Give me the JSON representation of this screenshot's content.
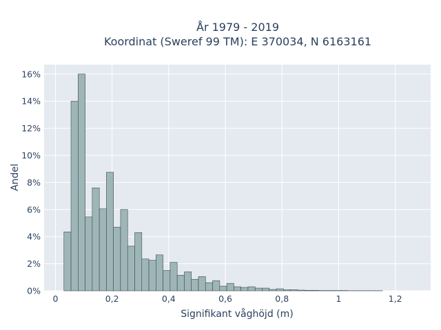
{
  "chart_data": {
    "type": "bar",
    "subtype": "histogram",
    "title_lines": [
      "År 1979 - 2019",
      "Koordinat (Sweref 99 TM): E 370034, N 6163161"
    ],
    "xlabel": "Signifikant våghöjd (m)",
    "ylabel": "Andel",
    "xlim": [
      -0.04,
      1.325
    ],
    "ylim": [
      0,
      0.167
    ],
    "x_ticks": [
      0,
      0.2,
      0.4,
      0.6,
      0.8,
      1,
      1.2
    ],
    "x_tick_labels": [
      "0",
      "0,2",
      "0,4",
      "0,6",
      "0,8",
      "1",
      "1,2"
    ],
    "y_ticks": [
      0,
      0.02,
      0.04,
      0.06,
      0.08,
      0.1,
      0.12,
      0.14,
      0.16
    ],
    "y_tick_labels": [
      "0%",
      "2%",
      "4%",
      "6%",
      "8%",
      "10%",
      "12%",
      "14%",
      "16%"
    ],
    "grid": true,
    "bin_width": 0.025,
    "bin_start": 0.03,
    "values": [
      0.0435,
      0.14,
      0.16,
      0.0545,
      0.076,
      0.0605,
      0.0875,
      0.047,
      0.06,
      0.033,
      0.043,
      0.0235,
      0.0225,
      0.0265,
      0.015,
      0.021,
      0.0115,
      0.014,
      0.0085,
      0.0105,
      0.006,
      0.0075,
      0.0035,
      0.0055,
      0.003,
      0.0025,
      0.003,
      0.002,
      0.002,
      0.001,
      0.0015,
      0.0008,
      0.0008,
      0.0005,
      0.0003,
      0.0003,
      0.0002,
      0.0002,
      0.0002,
      0.0002,
      0.0001,
      0.0001,
      0.0001,
      0.0001,
      0.0001
    ],
    "colors": {
      "bar_fill": "#9fb6b9",
      "bar_edge": "#3a4a4c",
      "plot_bg": "#e5e9f0",
      "text": "#2a3f5f"
    }
  }
}
